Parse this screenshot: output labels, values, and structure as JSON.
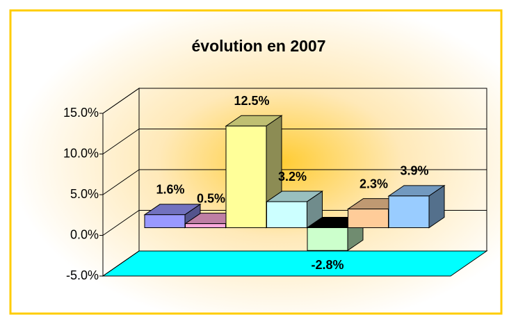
{
  "chart_data": {
    "type": "bar3d",
    "title": "évolution en 2007",
    "categories": [
      null,
      null,
      null,
      null,
      null,
      null,
      null
    ],
    "values": [
      1.6,
      0.5,
      12.5,
      3.2,
      -2.8,
      2.3,
      3.9
    ],
    "value_labels": [
      "1.6%",
      "0.5%",
      "12.5%",
      "3.2%",
      "-2.8%",
      "2.3%",
      "3.9%"
    ],
    "colors": [
      "#9999ff",
      "#ffaadd",
      "#ffff99",
      "#ccffff",
      "#ccffcc",
      "#ffcc99",
      "#99ccff"
    ],
    "floor_color": "#00ffff",
    "ylim": [
      -5,
      15
    ],
    "yticks": [
      {
        "value": -5,
        "label": "-5.0%"
      },
      {
        "value": 0,
        "label": "0.0%"
      },
      {
        "value": 5,
        "label": "5.0%"
      },
      {
        "value": 10,
        "label": "10.0%"
      },
      {
        "value": 15,
        "label": "15.0%"
      }
    ],
    "grid": true
  }
}
